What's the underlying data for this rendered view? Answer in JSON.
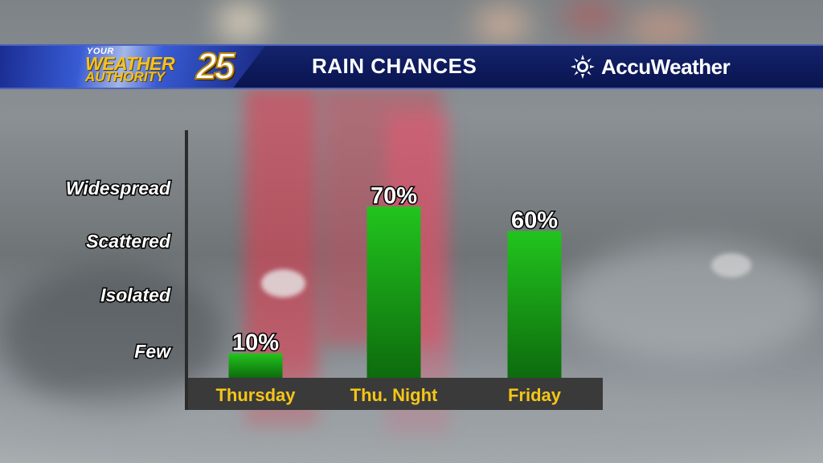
{
  "header": {
    "title": "RAIN CHANCES",
    "station_logo": {
      "top": "YOUR",
      "line1": "WEATHER",
      "line2": "AUTHORITY",
      "number": "25"
    },
    "provider": "AccuWeather"
  },
  "colors": {
    "bar_top": "#22c41e",
    "bar_bottom": "#0d6b0d",
    "x_label": "#f5c518",
    "header_bg": "#0d1a5c"
  },
  "chart_data": {
    "type": "bar",
    "title": "RAIN CHANCES",
    "categories": [
      "Thursday",
      "Thu. Night",
      "Friday"
    ],
    "values": [
      10,
      70,
      60
    ],
    "value_labels": [
      "10%",
      "70%",
      "60%"
    ],
    "y_categories": [
      "Few",
      "Isolated",
      "Scattered",
      "Widespread"
    ],
    "ylim": [
      0,
      100
    ],
    "grid": false,
    "legend": "none"
  }
}
